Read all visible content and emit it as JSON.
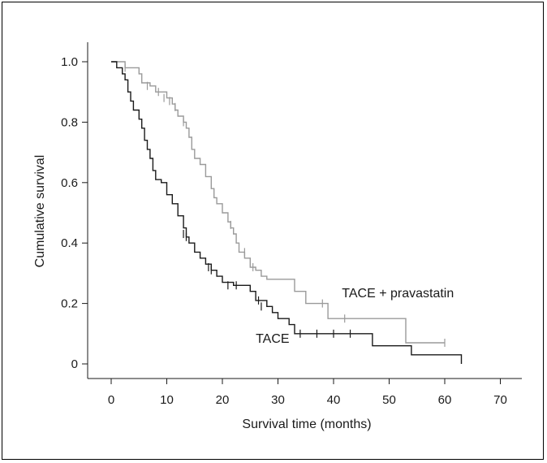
{
  "chart_data": {
    "type": "line",
    "subtype": "kaplan-meier",
    "xlabel": "Survival time (months)",
    "ylabel": "Cumulative survival",
    "xlim": [
      0,
      72
    ],
    "ylim": [
      0,
      1.05
    ],
    "x_ticks": [
      0,
      10,
      20,
      30,
      40,
      50,
      60,
      70
    ],
    "x_tick_labels": [
      "0",
      "10",
      "20",
      "30",
      "40",
      "50",
      "60",
      "70"
    ],
    "y_ticks": [
      0,
      0.2,
      0.4,
      0.6,
      0.8,
      1.0
    ],
    "y_tick_labels": [
      "0",
      "0.2",
      "0.4",
      "0.6",
      "0.8",
      "1.0"
    ],
    "grid": false,
    "legend": "none; series labeled directly on the plot",
    "series": [
      {
        "name": "TACE + pravastatin",
        "color": "#9a9a9a",
        "steps": [
          [
            0,
            1.0
          ],
          [
            2.5,
            0.98
          ],
          [
            5,
            0.96
          ],
          [
            5.5,
            0.93
          ],
          [
            7,
            0.92
          ],
          [
            8,
            0.9
          ],
          [
            10,
            0.88
          ],
          [
            11,
            0.86
          ],
          [
            11.5,
            0.84
          ],
          [
            12,
            0.82
          ],
          [
            13,
            0.8
          ],
          [
            13.5,
            0.78
          ],
          [
            14,
            0.75
          ],
          [
            14.5,
            0.71
          ],
          [
            15,
            0.68
          ],
          [
            16,
            0.66
          ],
          [
            17,
            0.62
          ],
          [
            18,
            0.58
          ],
          [
            18.5,
            0.55
          ],
          [
            19,
            0.53
          ],
          [
            20,
            0.5
          ],
          [
            21,
            0.47
          ],
          [
            21.5,
            0.45
          ],
          [
            22,
            0.43
          ],
          [
            22.5,
            0.4
          ],
          [
            23,
            0.37
          ],
          [
            24,
            0.35
          ],
          [
            25,
            0.32
          ],
          [
            26,
            0.31
          ],
          [
            27,
            0.29
          ],
          [
            28,
            0.28
          ],
          [
            33,
            0.24
          ],
          [
            35,
            0.2
          ],
          [
            39,
            0.15
          ],
          [
            47,
            0.15
          ],
          [
            53,
            0.07
          ],
          [
            60,
            0.07
          ]
        ],
        "censored": [
          [
            2.5,
            0.98
          ],
          [
            6.5,
            0.92
          ],
          [
            8.5,
            0.9
          ],
          [
            9.5,
            0.88
          ],
          [
            10.5,
            0.87
          ],
          [
            11.5,
            0.85
          ],
          [
            13,
            0.8
          ],
          [
            21.5,
            0.46
          ],
          [
            24,
            0.37
          ],
          [
            25.5,
            0.32
          ],
          [
            38,
            0.2
          ],
          [
            42,
            0.15
          ],
          [
            60,
            0.07
          ]
        ]
      },
      {
        "name": "TACE",
        "color": "#1a1a1a",
        "steps": [
          [
            0,
            1.0
          ],
          [
            1,
            0.98
          ],
          [
            2,
            0.96
          ],
          [
            2.5,
            0.94
          ],
          [
            3,
            0.9
          ],
          [
            3.5,
            0.87
          ],
          [
            4,
            0.84
          ],
          [
            5,
            0.81
          ],
          [
            5.5,
            0.78
          ],
          [
            6,
            0.74
          ],
          [
            6.5,
            0.71
          ],
          [
            7,
            0.68
          ],
          [
            7.5,
            0.64
          ],
          [
            8,
            0.61
          ],
          [
            9,
            0.6
          ],
          [
            10,
            0.56
          ],
          [
            11,
            0.53
          ],
          [
            12,
            0.49
          ],
          [
            13,
            0.45
          ],
          [
            13.5,
            0.42
          ],
          [
            14,
            0.4
          ],
          [
            15,
            0.37
          ],
          [
            16,
            0.35
          ],
          [
            17,
            0.33
          ],
          [
            18,
            0.31
          ],
          [
            19,
            0.29
          ],
          [
            20,
            0.27
          ],
          [
            22,
            0.26
          ],
          [
            25,
            0.24
          ],
          [
            26,
            0.21
          ],
          [
            28,
            0.19
          ],
          [
            29,
            0.17
          ],
          [
            30,
            0.15
          ],
          [
            32,
            0.13
          ],
          [
            33,
            0.1
          ],
          [
            47,
            0.06
          ],
          [
            54,
            0.03
          ],
          [
            63,
            0.0
          ]
        ],
        "censored": [
          [
            13,
            0.43
          ],
          [
            13.5,
            0.42
          ],
          [
            17.5,
            0.32
          ],
          [
            18,
            0.31
          ],
          [
            21,
            0.26
          ],
          [
            22.5,
            0.26
          ],
          [
            26.5,
            0.21
          ],
          [
            27,
            0.19
          ],
          [
            34,
            0.1
          ],
          [
            37,
            0.1
          ],
          [
            40,
            0.1
          ],
          [
            43,
            0.1
          ]
        ]
      }
    ],
    "annotations": [
      {
        "text": "TACE + pravastatin",
        "x": 41.5,
        "y": 0.22
      },
      {
        "text": "TACE",
        "x": 26,
        "y": 0.07
      }
    ]
  }
}
